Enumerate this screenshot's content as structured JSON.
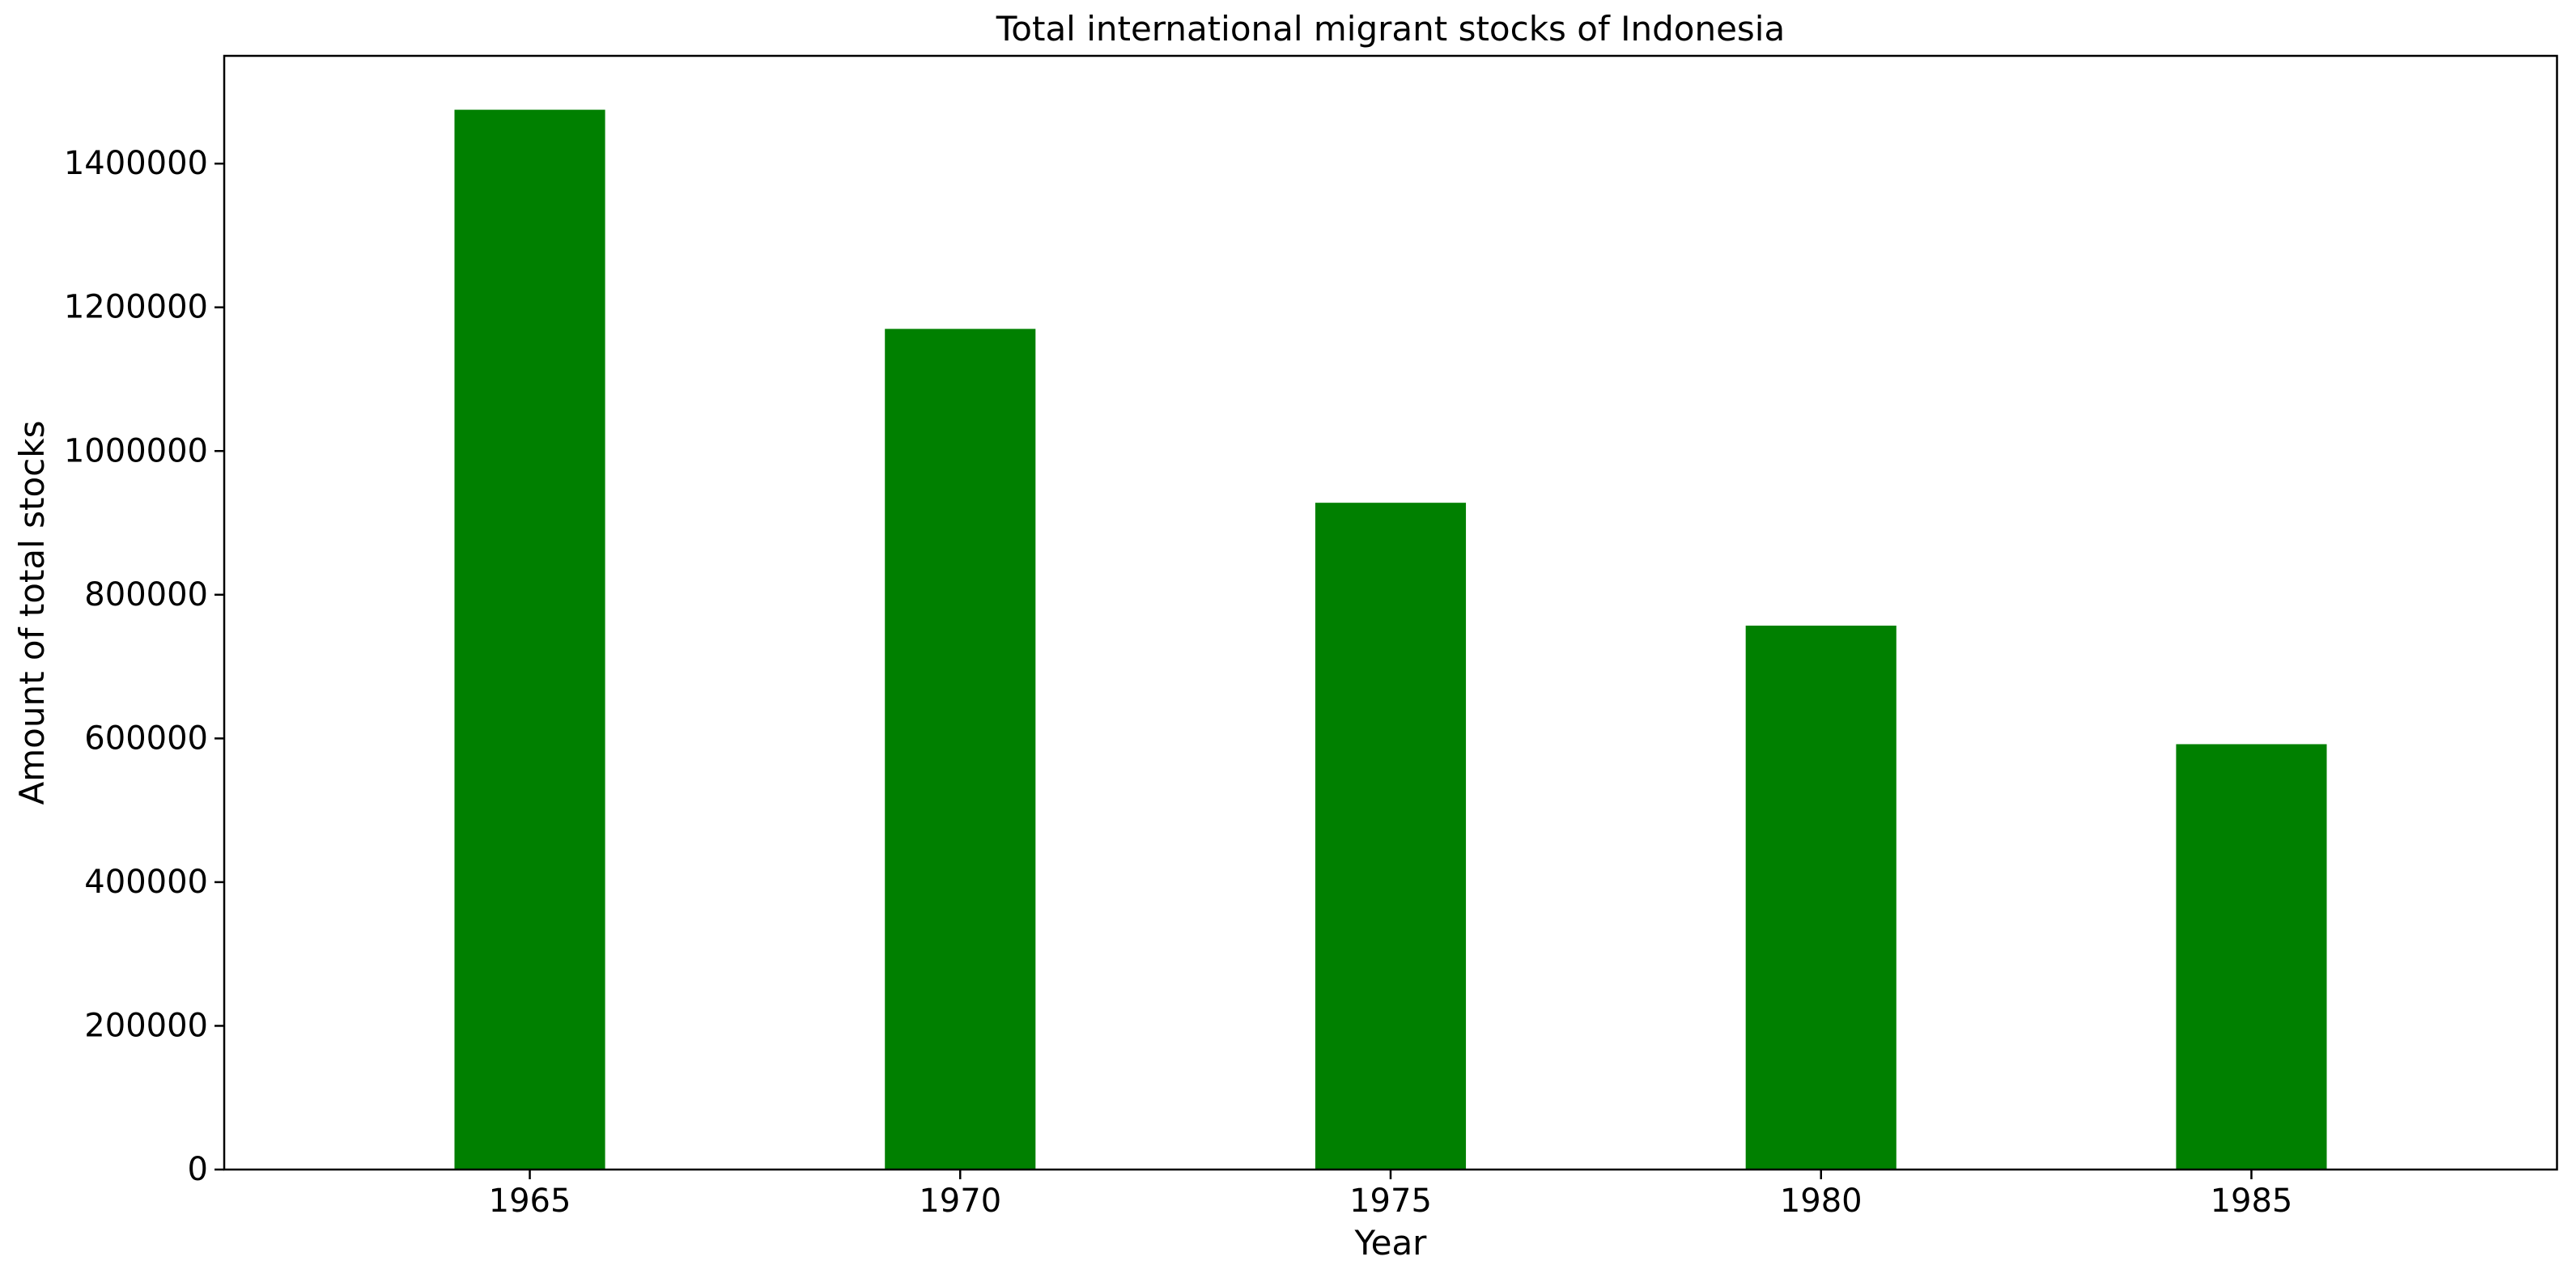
{
  "chart_data": {
    "type": "bar",
    "title": "Total international migrant stocks of Indonesia",
    "xlabel": "Year",
    "ylabel": "Amount of total stocks",
    "categories": [
      "1965",
      "1970",
      "1975",
      "1980",
      "1985"
    ],
    "values": [
      1475000,
      1170000,
      928000,
      757000,
      592000
    ],
    "ylim": [
      0,
      1550000
    ],
    "yticks": [
      0,
      200000,
      400000,
      600000,
      800000,
      1000000,
      1200000,
      1400000
    ],
    "ytick_labels": [
      "0",
      "200000",
      "400000",
      "600000",
      "800000",
      "1000000",
      "1200000",
      "1400000"
    ],
    "bar_color": "#008000",
    "grid": false,
    "legend": "none"
  }
}
